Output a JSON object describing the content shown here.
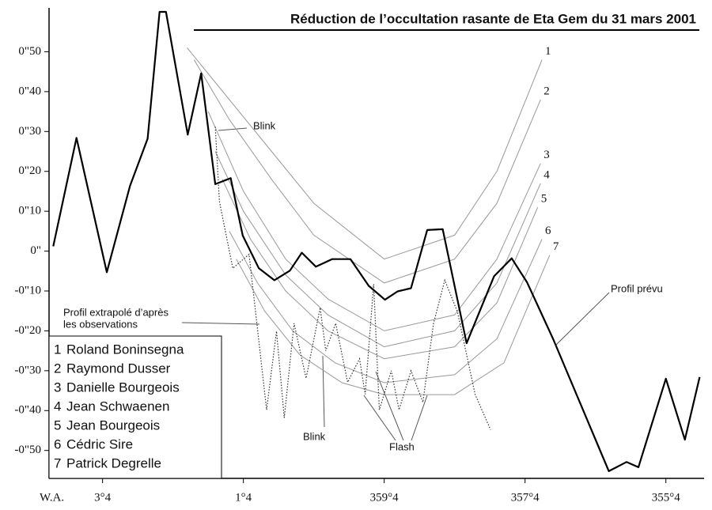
{
  "chart_data": {
    "type": "line",
    "title": "Réduction de l’occultation rasante de Eta Gem du 31 mars 2001",
    "x_label": "W.A.",
    "xlim": [
      4.16,
      -5.12
    ],
    "xticks": [
      {
        "value": 3.4,
        "label": "3°4"
      },
      {
        "value": 1.4,
        "label": "1°4"
      },
      {
        "value": -0.6,
        "label": "359°4"
      },
      {
        "value": -2.6,
        "label": "357°4"
      },
      {
        "value": -4.6,
        "label": "355°4"
      }
    ],
    "ylim": [
      -57,
      61
    ],
    "yticks": [
      {
        "value": 50,
        "label": "0\"50"
      },
      {
        "value": 40,
        "label": "0\"40"
      },
      {
        "value": 30,
        "label": "0\"30"
      },
      {
        "value": 20,
        "label": "0\"20"
      },
      {
        "value": 10,
        "label": "0\"10"
      },
      {
        "value": 0,
        "label": "0\""
      },
      {
        "value": -10,
        "label": "-0\"10"
      },
      {
        "value": -20,
        "label": "-0\"20"
      },
      {
        "value": -30,
        "label": "-0\"30"
      },
      {
        "value": -40,
        "label": "-0\"40"
      },
      {
        "value": -50,
        "label": "-0\"50"
      }
    ],
    "profile": {
      "color": "#000000",
      "x": [
        4.1,
        3.77,
        3.34,
        3.01,
        2.76,
        2.59,
        2.5,
        2.19,
        2.0,
        1.8,
        1.58,
        1.41,
        1.18,
        0.96,
        0.74,
        0.57,
        0.37,
        0.14,
        -0.12,
        -0.38,
        -0.61,
        -0.79,
        -0.98,
        -1.21,
        -1.43,
        -1.77,
        -2.16,
        -2.41,
        -2.63,
        -3.0,
        -3.79,
        -4.04,
        -4.21,
        -4.6,
        -4.87,
        -5.08
      ],
      "values": [
        1.2,
        28.4,
        -5.3,
        16.4,
        28.2,
        60,
        60,
        29.2,
        44.6,
        16.8,
        18.3,
        3.9,
        -4.3,
        -7.3,
        -4.9,
        -0.4,
        -3.9,
        -2.0,
        -2.0,
        -8.7,
        -12.2,
        -10.1,
        -9.3,
        5.3,
        5.5,
        -23.1,
        -6.3,
        -1.8,
        -7.9,
        -22.1,
        -55.2,
        -52.9,
        -54.2,
        -32.0,
        -47.3,
        -31.6
      ]
    },
    "extrapolated": {
      "color": "#333333",
      "x": [
        1.8,
        1.74,
        1.55,
        1.32,
        1.07,
        0.93,
        0.82,
        0.68,
        0.51,
        0.31,
        0.23,
        0.09,
        -0.08,
        -0.25,
        -0.33,
        -0.45,
        -0.53,
        -0.7,
        -0.81,
        -0.98,
        -1.15,
        -1.3,
        -1.46,
        -1.64,
        -1.89,
        -2.11
      ],
      "values": [
        31.2,
        12.4,
        -4.3,
        -0.8,
        -39.8,
        -20.1,
        -41.8,
        -18.1,
        -31.9,
        -14.2,
        -25.0,
        -18.1,
        -32.9,
        -27.0,
        -35.9,
        -8.3,
        -39.8,
        -30.0,
        -39.8,
        -30.0,
        -37.9,
        -18.1,
        -7.3,
        -15.2,
        -35.9,
        -44.8
      ]
    },
    "series": [
      {
        "label": "1",
        "name": "Roland Boninsegna",
        "color": "#999999",
        "x": [
          2.2,
          1.6,
          1.0,
          0.4,
          -0.6,
          -1.6,
          -2.2,
          -2.84
        ],
        "values": [
          51,
          38,
          25,
          12,
          -2,
          4,
          20,
          48
        ]
      },
      {
        "label": "2",
        "name": "Raymond Dusser",
        "color": "#999999",
        "x": [
          2.1,
          1.6,
          1.0,
          0.4,
          -0.6,
          -1.6,
          -2.2,
          -2.82
        ],
        "values": [
          48,
          33,
          18,
          4,
          -8,
          -2,
          12,
          38
        ]
      },
      {
        "label": "3",
        "name": "Danielle Bourgeois",
        "color": "#999999",
        "x": [
          1.9,
          1.4,
          0.8,
          0.2,
          -0.6,
          -1.6,
          -2.2,
          -2.82
        ],
        "values": [
          35,
          15,
          -2,
          -12,
          -20,
          -16,
          -2,
          22
        ]
      },
      {
        "label": "4",
        "name": "Jean Schwaenen",
        "color": "#999999",
        "x": [
          1.8,
          1.4,
          0.8,
          0.2,
          -0.6,
          -1.6,
          -2.2,
          -2.82
        ],
        "values": [
          25,
          10,
          -6,
          -16,
          -24,
          -20,
          -8,
          17
        ]
      },
      {
        "label": "5",
        "name": "Jean Bourgeois",
        "color": "#999999",
        "x": [
          1.7,
          1.3,
          0.8,
          0.2,
          -0.6,
          -1.6,
          -2.2,
          -2.78
        ],
        "values": [
          18,
          3,
          -10,
          -20,
          -27,
          -24,
          -13,
          11
        ]
      },
      {
        "label": "6",
        "name": "Cédric Sire",
        "color": "#999999",
        "x": [
          1.6,
          1.2,
          0.7,
          0.1,
          -0.6,
          -1.6,
          -2.2,
          -2.84
        ],
        "values": [
          5,
          -8,
          -20,
          -28,
          -33,
          -31,
          -22,
          3
        ]
      },
      {
        "label": "7",
        "name": "Patrick Degrelle",
        "color": "#999999",
        "x": [
          1.5,
          1.1,
          0.6,
          0.0,
          -0.6,
          -1.6,
          -2.3,
          -2.95
        ],
        "values": [
          -2,
          -15,
          -26,
          -33,
          -36,
          -36,
          -28,
          -1
        ]
      }
    ],
    "annotations": [
      "Blink",
      "Profil extrapolé d’après",
      "les observations",
      "Profil prévu",
      "Blink",
      "Flash"
    ]
  }
}
